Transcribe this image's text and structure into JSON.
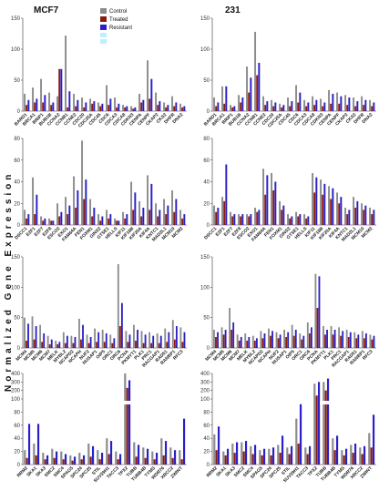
{
  "figure": {
    "ylabel": "Normalized Gene Expression",
    "legend": [
      {
        "label": "Control",
        "color": "#8c8c8c"
      },
      {
        "label": "Treated",
        "color": "#8b1a10"
      },
      {
        "label": "Resistant",
        "color": "#2a1fc8"
      }
    ],
    "legend_faded_color": "#bfeeff"
  },
  "chart_data": [
    {
      "type": "bar",
      "title": "MCF7",
      "ylim": [
        0,
        150
      ],
      "yticks": [
        0,
        50,
        100,
        150
      ],
      "categories": [
        "BARD1",
        "BRCA1",
        "BRIP1",
        "BUB1B",
        "CCNA2",
        "CCNB1",
        "CCNE2",
        "CDC20",
        "CDC25A",
        "CDC45",
        "CDC6",
        "CDCA3",
        "CDCA8",
        "CDKN3",
        "CENPA",
        "CENPF",
        "CKAP2",
        "CKS2",
        "DHFR",
        "DNA2"
      ],
      "series": [
        {
          "name": "Control",
          "values": [
            28,
            38,
            52,
            30,
            24,
            122,
            28,
            22,
            20,
            14,
            42,
            22,
            10,
            8,
            28,
            82,
            30,
            14,
            24,
            12
          ]
        },
        {
          "name": "Treated",
          "values": [
            10,
            14,
            14,
            10,
            68,
            6,
            8,
            6,
            12,
            8,
            10,
            6,
            6,
            4,
            14,
            20,
            10,
            6,
            8,
            6
          ]
        },
        {
          "name": "Resistant",
          "values": [
            18,
            20,
            26,
            14,
            68,
            32,
            18,
            14,
            16,
            12,
            20,
            12,
            8,
            6,
            18,
            52,
            16,
            10,
            14,
            8
          ]
        }
      ]
    },
    {
      "type": "bar",
      "title": "231",
      "ylim": [
        0,
        150
      ],
      "yticks": [
        0,
        50,
        100,
        150
      ],
      "categories": [
        "BARD1",
        "BRCA1",
        "BRIP1",
        "BUB1B",
        "CCNA2",
        "CCNB1",
        "CCNE2",
        "CDC20",
        "CDC25A",
        "CDC45",
        "CDC6",
        "CDCA3",
        "CDCA8",
        "CDKN3",
        "CENPA",
        "CENPF",
        "CKAP2",
        "CKS2",
        "DHFR",
        "DNA2"
      ],
      "series": [
        {
          "name": "Control",
          "values": [
            22,
            40,
            10,
            26,
            72,
            128,
            24,
            18,
            12,
            22,
            42,
            18,
            24,
            20,
            34,
            30,
            26,
            22,
            24,
            18
          ]
        },
        {
          "name": "Treated",
          "values": [
            8,
            12,
            6,
            14,
            30,
            58,
            10,
            8,
            6,
            8,
            14,
            8,
            10,
            8,
            12,
            12,
            10,
            8,
            10,
            8
          ]
        },
        {
          "name": "Resistant",
          "values": [
            14,
            40,
            8,
            22,
            54,
            78,
            16,
            14,
            10,
            16,
            30,
            14,
            18,
            14,
            28,
            24,
            22,
            16,
            18,
            14
          ]
        }
      ]
    },
    {
      "type": "bar",
      "title": "",
      "ylim": [
        0,
        80
      ],
      "yticks": [
        0,
        20,
        40,
        60,
        80
      ],
      "categories": [
        "DSCC1",
        "E2F1",
        "E2F7",
        "E2F8",
        "ESCO2",
        "EXO1",
        "FAM64A",
        "FEN1",
        "FOXM1",
        "GINS2",
        "GTSE1",
        "HELLS",
        "KIF11",
        "KIF18B",
        "KIF20A",
        "KIF4A",
        "KNTC1",
        "MAD2L1",
        "MCM10",
        "MCM2"
      ],
      "series": [
        {
          "name": "Control",
          "values": [
            14,
            44,
            8,
            6,
            20,
            26,
            45,
            78,
            24,
            10,
            14,
            6,
            12,
            40,
            22,
            46,
            20,
            24,
            32,
            14
          ]
        },
        {
          "name": "Treated",
          "values": [
            6,
            10,
            4,
            4,
            8,
            10,
            16,
            24,
            8,
            4,
            6,
            4,
            6,
            14,
            8,
            14,
            8,
            10,
            12,
            6
          ]
        },
        {
          "name": "Resistant",
          "values": [
            10,
            28,
            6,
            4,
            12,
            18,
            32,
            42,
            16,
            8,
            10,
            4,
            10,
            30,
            16,
            38,
            14,
            18,
            24,
            10
          ]
        }
      ]
    },
    {
      "type": "bar",
      "title": "",
      "ylim": [
        0,
        80
      ],
      "yticks": [
        0,
        20,
        40,
        60,
        80
      ],
      "categories": [
        "DSCC1",
        "E2F1",
        "E2F7",
        "E2F8",
        "ESCO2",
        "EXO1",
        "FAM64A",
        "FEN1",
        "FOXM1",
        "GINS2",
        "GTSE1",
        "HELLS",
        "KIF11",
        "KIF18B",
        "KIF20A",
        "KIF4A",
        "KNTC1",
        "MAD2L1",
        "MCM10",
        "MCM2"
      ],
      "series": [
        {
          "name": "Control",
          "values": [
            18,
            26,
            12,
            10,
            10,
            16,
            52,
            48,
            22,
            10,
            12,
            10,
            48,
            42,
            36,
            30,
            16,
            26,
            20,
            16
          ]
        },
        {
          "name": "Treated",
          "values": [
            12,
            22,
            8,
            8,
            8,
            12,
            28,
            32,
            14,
            6,
            8,
            6,
            30,
            28,
            24,
            20,
            10,
            16,
            14,
            10
          ]
        },
        {
          "name": "Resistant",
          "values": [
            16,
            56,
            10,
            10,
            10,
            14,
            46,
            40,
            18,
            8,
            10,
            8,
            44,
            38,
            34,
            26,
            14,
            22,
            18,
            14
          ]
        }
      ]
    },
    {
      "type": "bar",
      "title": "",
      "ylim": [
        0,
        150
      ],
      "yticks": [
        0,
        50,
        100,
        150
      ],
      "categories": [
        "MCM4",
        "MCM5",
        "MCM6",
        "MCM7",
        "MELK",
        "MYBL2",
        "NCAPD2",
        "NCAPH",
        "NUF2",
        "NUSAP1",
        "OIP5",
        "ORC1",
        "ORC6",
        "PCNA",
        "PKMYT1",
        "PLK1",
        "PRC1",
        "RACGAP1",
        "RAD51",
        "RANBP1",
        "RFC3"
      ],
      "series": [
        {
          "name": "Control",
          "values": [
            50,
            52,
            38,
            20,
            12,
            26,
            20,
            48,
            22,
            32,
            30,
            22,
            138,
            28,
            38,
            28,
            26,
            24,
            32,
            46,
            34
          ]
        },
        {
          "name": "Treated",
          "values": [
            12,
            14,
            10,
            6,
            6,
            8,
            8,
            14,
            8,
            10,
            10,
            8,
            36,
            10,
            12,
            8,
            8,
            8,
            10,
            14,
            10
          ]
        },
        {
          "name": "Resistant",
          "values": [
            40,
            36,
            24,
            14,
            10,
            20,
            18,
            38,
            18,
            26,
            24,
            16,
            74,
            22,
            30,
            22,
            20,
            20,
            26,
            36,
            26
          ]
        }
      ]
    },
    {
      "type": "bar",
      "title": "",
      "ylim": [
        0,
        150
      ],
      "yticks": [
        0,
        50,
        100,
        150
      ],
      "categories": [
        "MCM4",
        "MCM5",
        "MCM6",
        "MCM7",
        "MELK",
        "MYBL2",
        "NCAPD2",
        "NCAPH",
        "NUF2",
        "NUSAP1",
        "OIP5",
        "ORC1",
        "ORC6",
        "PCNA",
        "PKMYT1",
        "PLK1",
        "PRC1",
        "RACGAP1",
        "RAD51",
        "RANBP1",
        "RFC3"
      ],
      "series": [
        {
          "name": "Control",
          "values": [
            30,
            34,
            66,
            22,
            24,
            20,
            28,
            32,
            26,
            30,
            38,
            24,
            42,
            122,
            36,
            36,
            34,
            30,
            26,
            28,
            22
          ]
        },
        {
          "name": "Treated",
          "values": [
            18,
            22,
            30,
            12,
            12,
            12,
            16,
            20,
            16,
            18,
            20,
            14,
            24,
            66,
            22,
            22,
            20,
            18,
            16,
            16,
            14
          ]
        },
        {
          "name": "Resistant",
          "values": [
            26,
            30,
            42,
            18,
            18,
            16,
            24,
            28,
            22,
            26,
            30,
            20,
            34,
            118,
            30,
            30,
            28,
            26,
            22,
            24,
            20
          ]
        }
      ]
    },
    {
      "type": "bar",
      "title": "",
      "ylim": [
        0,
        400
      ],
      "yticks": [
        0,
        20,
        40,
        60,
        80,
        100,
        200,
        300,
        400
      ],
      "categories": [
        "RRM2",
        "SKA1",
        "SKA3",
        "SMC2",
        "SMC4",
        "SPAG5",
        "SPC24",
        "SPC25",
        "STIL",
        "SUV39H1",
        "TACC3",
        "TPX2",
        "TUBB",
        "TUBB4B",
        "TYMS",
        "WDR76",
        "XRCC2",
        "ZWINT"
      ],
      "series": [
        {
          "name": "Control",
          "values": [
            22,
            32,
            18,
            24,
            20,
            14,
            18,
            32,
            22,
            40,
            20,
            400,
            34,
            26,
            20,
            40,
            26,
            22
          ]
        },
        {
          "name": "Treated",
          "values": [
            10,
            14,
            8,
            10,
            8,
            6,
            8,
            12,
            8,
            16,
            8,
            230,
            12,
            10,
            8,
            14,
            10,
            8
          ]
        },
        {
          "name": "Resistant",
          "values": [
            62,
            62,
            14,
            20,
            16,
            12,
            14,
            28,
            18,
            36,
            16,
            320,
            30,
            24,
            18,
            36,
            22,
            70
          ]
        }
      ]
    },
    {
      "type": "bar",
      "title": "",
      "ylim": [
        0,
        400
      ],
      "yticks": [
        0,
        20,
        40,
        60,
        80,
        100,
        200,
        300,
        400
      ],
      "categories": [
        "RRM2",
        "SKA1",
        "SKA3",
        "SMC2",
        "SMC4",
        "SPAG5",
        "SPC24",
        "SPC25",
        "STIL",
        "SUV39H1",
        "TACC3",
        "TPX2",
        "TUBB",
        "TUBB4B",
        "TYMS",
        "WDR76",
        "XRCC2",
        "ZWINT"
      ],
      "series": [
        {
          "name": "Control",
          "values": [
            46,
            20,
            32,
            34,
            28,
            22,
            24,
            30,
            26,
            70,
            26,
            280,
            300,
            40,
            22,
            30,
            26,
            48
          ]
        },
        {
          "name": "Treated",
          "values": [
            22,
            14,
            18,
            20,
            16,
            14,
            14,
            18,
            16,
            32,
            16,
            140,
            200,
            22,
            14,
            18,
            16,
            26
          ]
        },
        {
          "name": "Resistant",
          "values": [
            58,
            24,
            34,
            36,
            30,
            24,
            26,
            44,
            28,
            92,
            28,
            300,
            340,
            44,
            24,
            32,
            28,
            76
          ]
        }
      ]
    }
  ]
}
